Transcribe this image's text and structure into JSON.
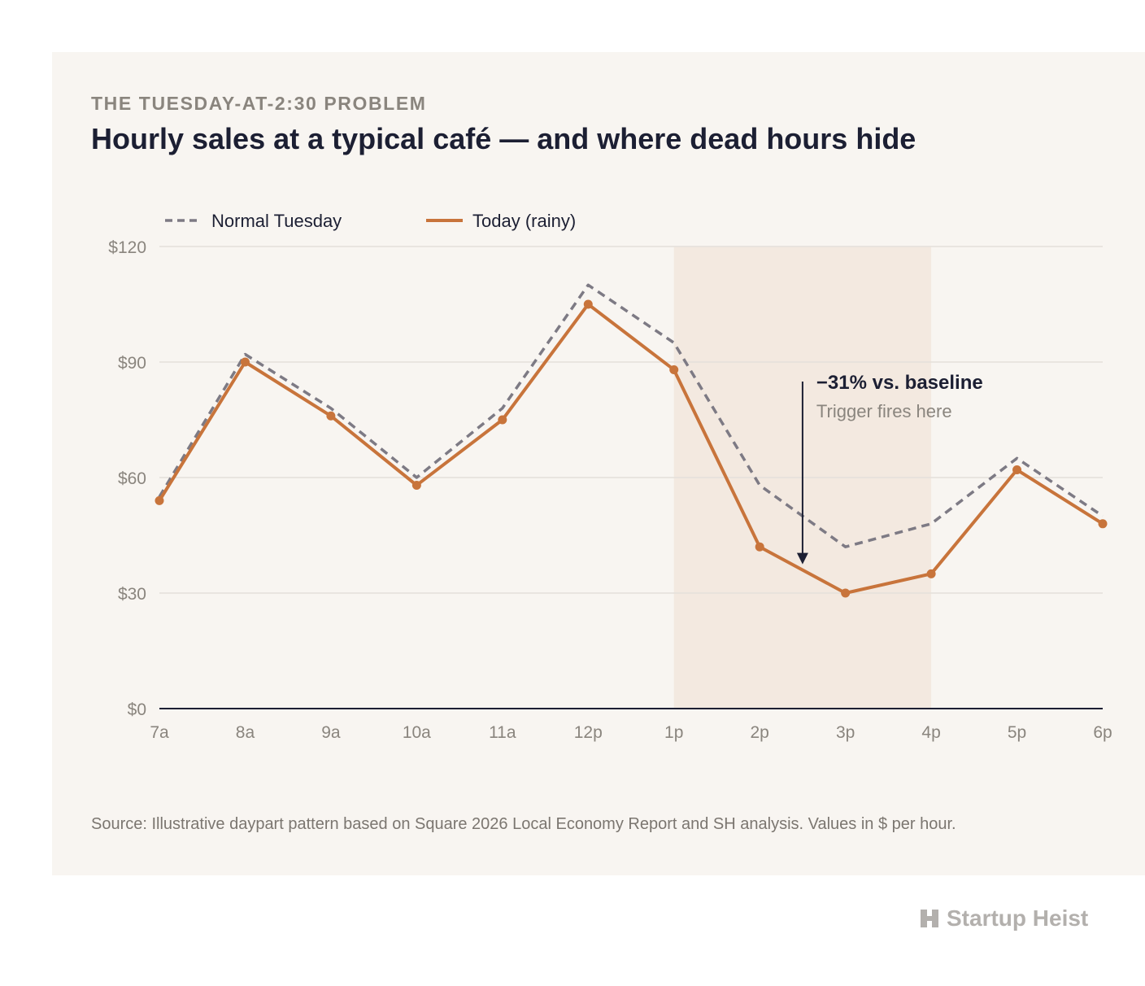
{
  "header": {
    "eyebrow": "THE TUESDAY-AT-2:30 PROBLEM",
    "title": "Hourly sales at a typical café — and where dead hours hide"
  },
  "footer": {
    "source": "Source: Illustrative daypart pattern based on Square 2026 Local Economy Report and SH analysis. Values in $ per hour."
  },
  "brand": {
    "name": "Startup Heist",
    "icon": "building-h-icon"
  },
  "colors": {
    "today": "#c8743b",
    "normal": "#7d7a84",
    "highlight": "#f3e9e0",
    "axis": "#1c1f33",
    "grid": "#e4e0da"
  },
  "chart_data": {
    "type": "line",
    "categories": [
      "7a",
      "8a",
      "9a",
      "10a",
      "11a",
      "12p",
      "1p",
      "2p",
      "3p",
      "4p",
      "5p",
      "6p"
    ],
    "ylim": [
      0,
      120
    ],
    "yticks": [
      0,
      30,
      60,
      90,
      120
    ],
    "ytick_labels": [
      "$0",
      "$30",
      "$60",
      "$90",
      "$120"
    ],
    "legend_position": "top-left",
    "grid": true,
    "series": [
      {
        "name": "Normal Tuesday",
        "style": "dashed",
        "values": [
          55,
          92,
          78,
          60,
          78,
          110,
          95,
          58,
          42,
          48,
          65,
          50
        ]
      },
      {
        "name": "Today (rainy)",
        "style": "solid",
        "markers": true,
        "values": [
          54,
          90,
          76,
          58,
          75,
          105,
          88,
          42,
          30,
          35,
          62,
          48
        ]
      }
    ],
    "highlight_range": [
      "1p",
      "4p"
    ],
    "annotation": {
      "headline": "−31% vs. baseline",
      "subtext": "Trigger fires here",
      "x": "2:30p",
      "arrow_target_value": 40
    }
  }
}
